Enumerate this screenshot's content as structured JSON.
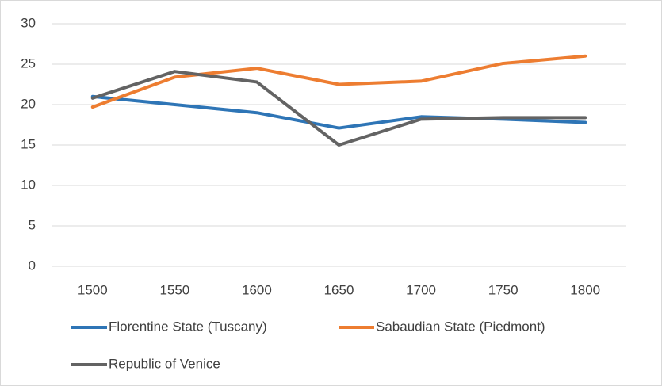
{
  "chart_data": {
    "type": "line",
    "categories": [
      "1500",
      "1550",
      "1600",
      "1650",
      "1700",
      "1750",
      "1800"
    ],
    "series": [
      {
        "name": "Florentine State (Tuscany)",
        "color": "#2e75b6",
        "values": [
          21,
          20,
          19,
          17.1,
          18.5,
          18.2,
          17.8
        ]
      },
      {
        "name": "Sabaudian State (Piedmont)",
        "color": "#ed7d31",
        "values": [
          19.7,
          23.4,
          24.5,
          22.5,
          22.9,
          25.1,
          26
        ]
      },
      {
        "name": "Republic of Venice",
        "color": "#636363",
        "values": [
          20.8,
          24.1,
          22.8,
          15,
          18.2,
          18.4,
          18.4
        ]
      }
    ],
    "ylim": [
      0,
      30
    ],
    "yticks": [
      0,
      5,
      10,
      15,
      20,
      25,
      30
    ],
    "grid": true,
    "legend": "bottom"
  }
}
